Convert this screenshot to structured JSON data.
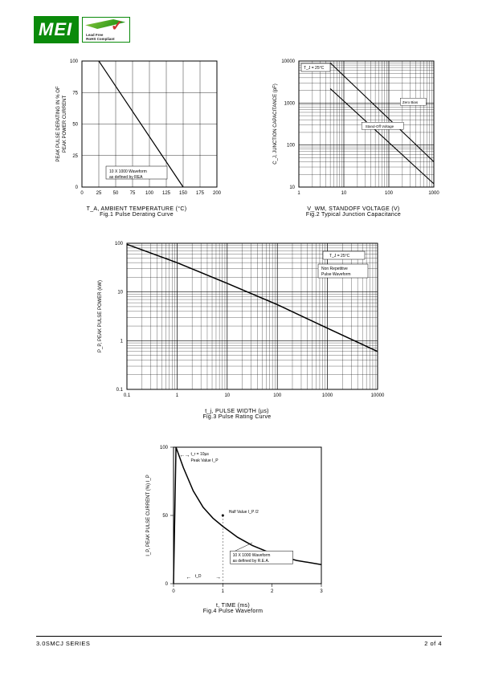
{
  "logo": {
    "text": "MEI",
    "badge_line1": "Lead Free",
    "badge_line2": "RoHS Compliant"
  },
  "fig1": {
    "type": "line",
    "ylabel": "PEAK PULSE DERATING IN % OF\nPEAK POWER CURRENT",
    "xlabel": "T_A, AMBIENT TEMPERATURE (°C)",
    "caption": "Fig.1 Pulse Derating Curve",
    "xlim": [
      0,
      200
    ],
    "xtick_step": 25,
    "ylim": [
      0,
      100
    ],
    "ytick_step": 25,
    "note": "10 X 1000 Waveform\nas defined by REA",
    "line_data": [
      [
        25,
        100
      ],
      [
        150,
        0
      ]
    ],
    "line_color": "#000",
    "line_width": 1.2,
    "bg": "#fff",
    "grid_color": "#000",
    "axis_color": "#000",
    "label_fontsize": 6
  },
  "fig2": {
    "type": "loglog",
    "ylabel": "C_J, JUNCTION CAPACITANCE (pF)",
    "xlabel": "V_WM, STANDOFF VOLTAGE (V)",
    "caption": "Fig.2 Typical Junction Capacitance",
    "xlim": [
      1,
      1000
    ],
    "xticks": [
      1,
      10,
      100,
      1000
    ],
    "ylim": [
      10,
      10000
    ],
    "yticks": [
      10,
      100,
      1000,
      10000
    ],
    "note_tj": "T_J = 25°C",
    "series": [
      {
        "name": "Zero Bias",
        "color": "#000",
        "width": 1.1,
        "points": [
          [
            5,
            9000
          ],
          [
            1000,
            40
          ]
        ]
      },
      {
        "name": "Stand-Off Voltage",
        "color": "#000",
        "width": 1.1,
        "points": [
          [
            5,
            2200
          ],
          [
            1000,
            12
          ]
        ]
      }
    ],
    "bg": "#fff",
    "grid_color": "#000",
    "axis_color": "#000",
    "label_fontsize": 6
  },
  "fig3": {
    "type": "loglog",
    "ylabel": "P_P, PEAK PULSE POWER (kW)",
    "xlabel": "t_j, PULSE WIDTH (µs)",
    "caption": "Fig.3 Pulse Rating Curve",
    "xlim": [
      0.1,
      10000
    ],
    "xticks": [
      0.1,
      1,
      10,
      100,
      1000,
      10000
    ],
    "ylim": [
      0.1,
      100
    ],
    "yticks": [
      0.1,
      1,
      10,
      100
    ],
    "note_tj": "T_J = 25°C",
    "note2": "Non Repetitive\nPulse Waveform",
    "line_data": [
      [
        0.1,
        95
      ],
      [
        1,
        40
      ],
      [
        10,
        15
      ],
      [
        100,
        5.5
      ],
      [
        1000,
        1.8
      ],
      [
        10000,
        0.6
      ]
    ],
    "line_color": "#000",
    "line_width": 1.5,
    "bg": "#fff",
    "grid_color": "#000",
    "axis_color": "#000",
    "label_fontsize": 6
  },
  "fig4": {
    "type": "line",
    "ylabel": "I_P, PEAK PULSE CURRENT (%) I_P",
    "xlabel": "t, TIME (ms)",
    "caption": "Fig.4 Pulse Waveform",
    "xlim": [
      0,
      3
    ],
    "xtick_step": 1,
    "ylim": [
      0,
      100
    ],
    "ytick_step": 50,
    "note_tr": "t_r = 10µs",
    "note_peak": "Peak Value I_P",
    "note_half": "Half Value I_P /2",
    "note_td": "t_D",
    "note_box": "10 X 1000 Waveform\nas defined by R.E.A.",
    "curve": [
      [
        0,
        0
      ],
      [
        0.05,
        100
      ],
      [
        0.2,
        85
      ],
      [
        0.4,
        68
      ],
      [
        0.6,
        56
      ],
      [
        0.8,
        48
      ],
      [
        1.0,
        42
      ],
      [
        1.3,
        34
      ],
      [
        1.6,
        28
      ],
      [
        2.0,
        22
      ],
      [
        2.5,
        17
      ],
      [
        3.0,
        14
      ]
    ],
    "line_color": "#000",
    "line_width": 1.5,
    "bg": "#fff",
    "grid_color": "#000",
    "axis_color": "#000",
    "label_fontsize": 6
  },
  "footer": {
    "left": "3.0SMCJ SERIES",
    "right": "2 of 4"
  }
}
